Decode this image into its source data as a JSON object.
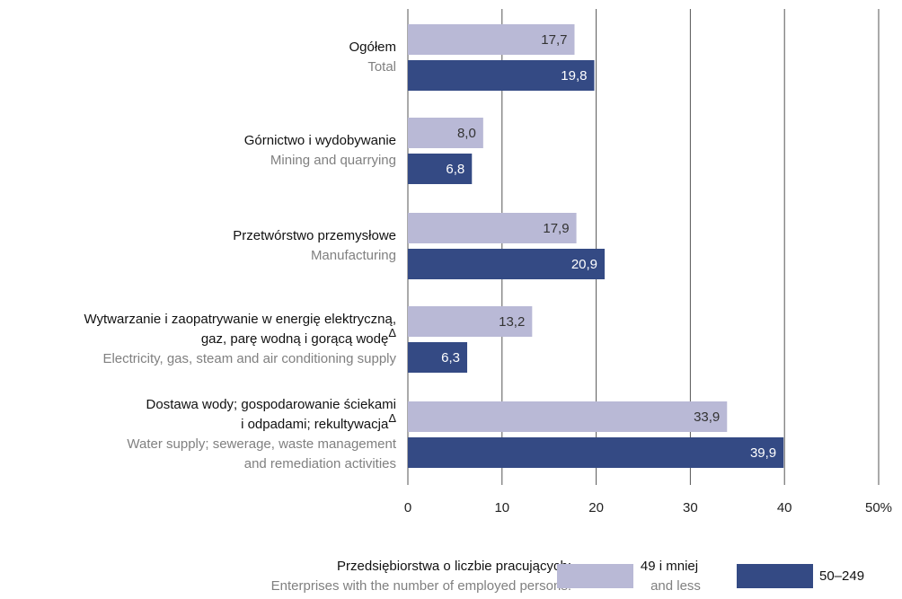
{
  "chart_data": {
    "type": "bar",
    "orientation": "horizontal",
    "categories": [
      {
        "pl": [
          "Ogółem"
        ],
        "en": [
          "Total"
        ]
      },
      {
        "pl": [
          "Górnictwo i wydobywanie"
        ],
        "en": [
          "Mining and quarrying"
        ]
      },
      {
        "pl": [
          "Przetwórstwo przemysłowe"
        ],
        "en": [
          "Manufacturing"
        ]
      },
      {
        "pl": [
          "Wytwarzanie i zaopatrywanie w energię elektryczną,",
          "gaz, parę wodną i gorącą wodę"
        ],
        "note": "Δ",
        "en": [
          "Electricity, gas, steam and air conditioning supply"
        ]
      },
      {
        "pl": [
          "Dostawa wody; gospodarowanie ściekami",
          "i odpadami; rekultywacja"
        ],
        "note": "Δ",
        "en": [
          "Water supply; sewerage, waste management",
          "and remediation activities"
        ]
      }
    ],
    "series": [
      {
        "name": "49 i mniej",
        "name_en": "and less",
        "color": "#b9b9d6",
        "values": [
          17.7,
          8.0,
          17.9,
          13.2,
          33.9
        ],
        "value_labels": [
          "17,7",
          "8,0",
          "17,9",
          "13,2",
          "33,9"
        ]
      },
      {
        "name": "50–249",
        "color": "#344a84",
        "values": [
          19.8,
          6.8,
          20.9,
          6.3,
          39.9
        ],
        "value_labels": [
          "19,8",
          "6,8",
          "20,9",
          "6,3",
          "39,9"
        ]
      }
    ],
    "xlim": [
      0,
      50
    ],
    "xticks": [
      0,
      10,
      20,
      30,
      40,
      {
        "value": 50,
        "label": "50%"
      }
    ],
    "grid": true,
    "legend": {
      "title": "Przedsiębiorstwa o liczbie pracujących:",
      "title_en": "Enterprises with the number of employed persons:",
      "position": "bottom"
    }
  }
}
